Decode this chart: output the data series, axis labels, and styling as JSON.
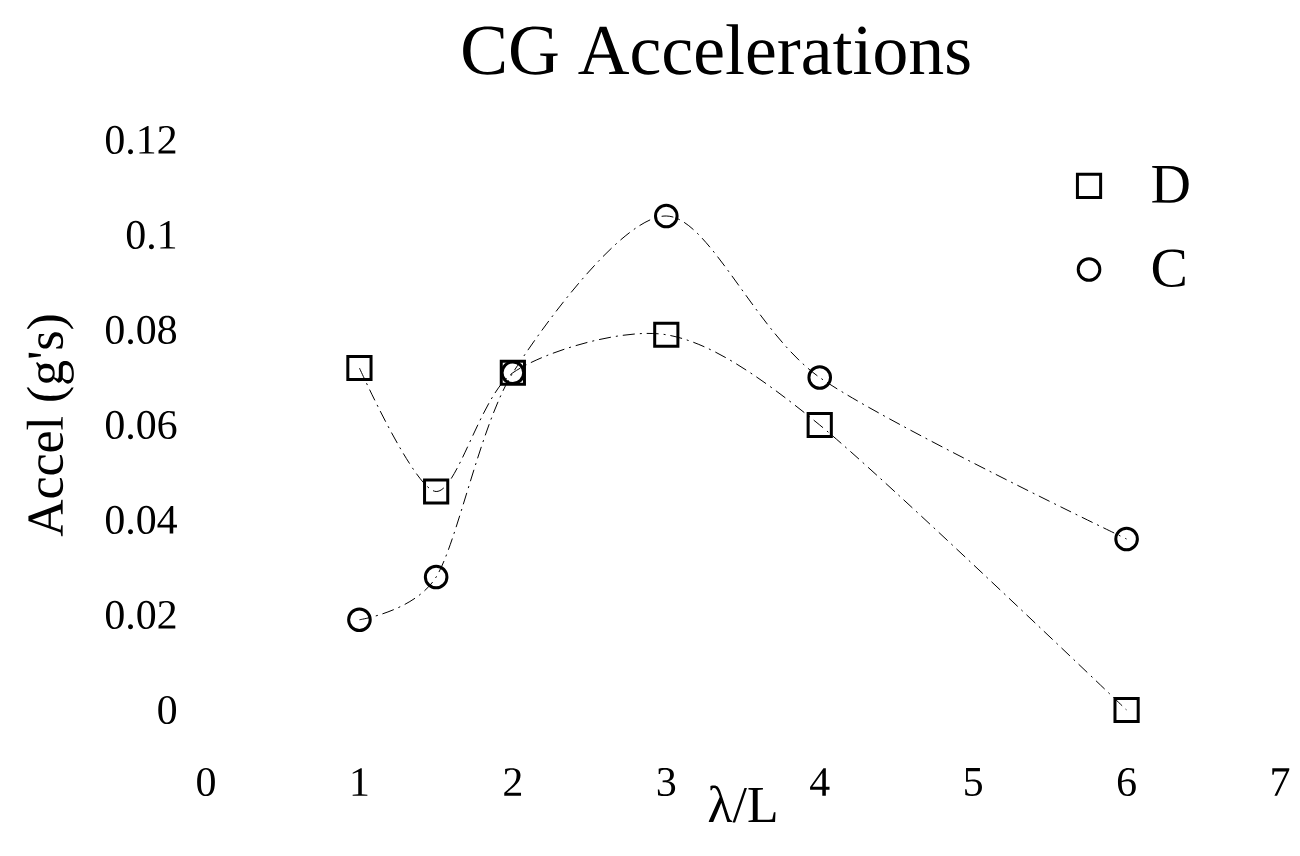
{
  "chart_data": {
    "type": "line",
    "title": "CG Accelerations",
    "xlabel": "λ/L",
    "ylabel": "Accel (g's)",
    "x": [
      1,
      1.5,
      2,
      3,
      4,
      6
    ],
    "series": [
      {
        "name": "D",
        "color": "#000000",
        "marker": "square",
        "values": [
          0.072,
          0.046,
          0.071,
          0.079,
          0.06,
          0
        ]
      },
      {
        "name": "C",
        "color": "#000000",
        "marker": "circle",
        "values": [
          0.019,
          0.028,
          0.071,
          0.104,
          0.07,
          0.036
        ]
      }
    ],
    "xlim": [
      0,
      7
    ],
    "ylim": [
      0,
      0.12
    ],
    "xticks": [
      0,
      1,
      2,
      3,
      4,
      5,
      6,
      7
    ],
    "yticks": [
      0,
      0.02,
      0.04,
      0.06,
      0.08,
      0.1,
      0.12
    ],
    "legend": "top right",
    "line_style": "dashed"
  }
}
